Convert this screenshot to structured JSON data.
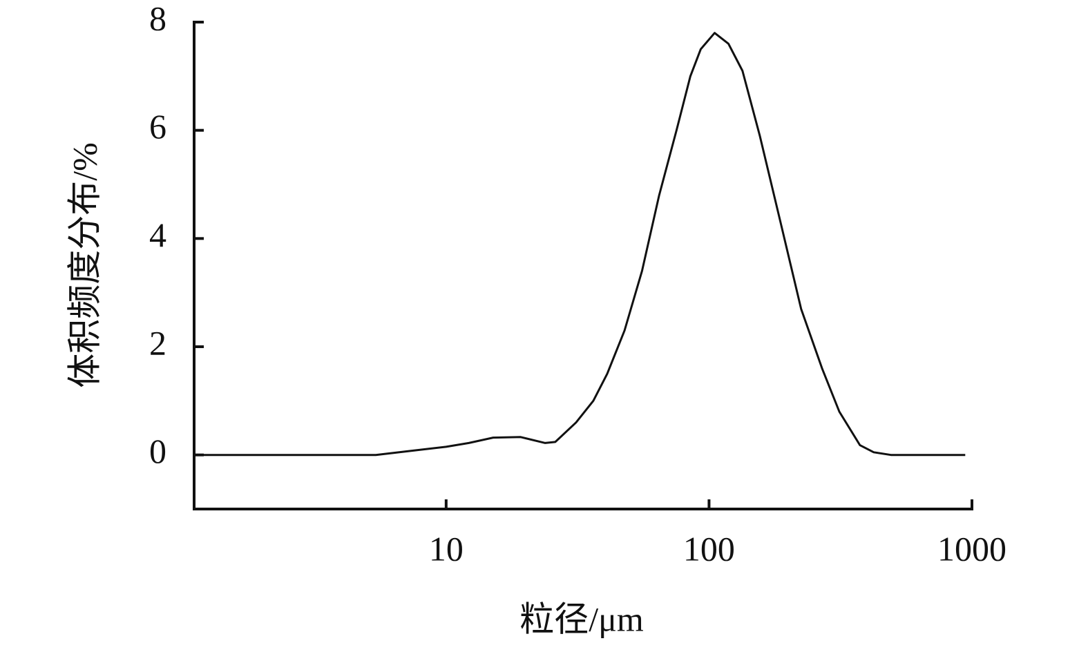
{
  "chart_data": {
    "type": "line",
    "x_label": "粒径/μm",
    "y_label": "体积频度分布/%",
    "x_log": true,
    "xlim": [
      1.1,
      1000
    ],
    "xticks": [
      10,
      100,
      1000
    ],
    "ylim": [
      -1,
      8
    ],
    "yticks": [
      0,
      2,
      4,
      6,
      8
    ],
    "series": [
      {
        "color": "#111111",
        "x": [
          1.1,
          5.4,
          7.5,
          10,
          12.2,
          15.1,
          19.2,
          23.8,
          26,
          31.2,
          36.3,
          41,
          47.7,
          55.6,
          64.6,
          75.2,
          84.9,
          93,
          105,
          118.5,
          134,
          156,
          187,
          224,
          269,
          313,
          375,
          423,
          492,
          943
        ],
        "values": [
          0,
          0,
          0.08,
          0.15,
          0.22,
          0.32,
          0.33,
          0.22,
          0.24,
          0.6,
          1.0,
          1.5,
          2.3,
          3.4,
          4.8,
          6.0,
          7.0,
          7.5,
          7.8,
          7.6,
          7.1,
          5.9,
          4.3,
          2.7,
          1.6,
          0.8,
          0.18,
          0.05,
          0,
          0
        ]
      }
    ]
  }
}
